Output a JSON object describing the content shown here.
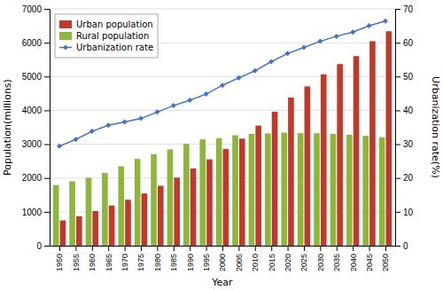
{
  "chart_data": {
    "type": "bar",
    "x": [
      1950,
      1955,
      1960,
      1965,
      1970,
      1975,
      1980,
      1985,
      1990,
      1995,
      2000,
      2005,
      2010,
      2015,
      2020,
      2025,
      2030,
      2035,
      2040,
      2045,
      2050
    ],
    "series": [
      {
        "name": "Urban population",
        "type": "bar",
        "color": "#c0392b",
        "values": [
          746,
          870,
          1022,
          1188,
          1357,
          1543,
          1770,
          2011,
          2281,
          2553,
          2862,
          3164,
          3549,
          3959,
          4378,
          4708,
          5063,
          5368,
          5604,
          6044,
          6339
        ]
      },
      {
        "name": "Rural population",
        "type": "bar",
        "color": "#8db63c",
        "values": [
          1791,
          1903,
          2008,
          2148,
          2347,
          2566,
          2705,
          2845,
          3011,
          3144,
          3178,
          3264,
          3306,
          3318,
          3342,
          3325,
          3324,
          3306,
          3278,
          3247,
          3208
        ]
      },
      {
        "name": "Urbanization rate",
        "type": "line",
        "axis": "y2",
        "color": "#4472c4",
        "marker": "diamond",
        "values": [
          29.4,
          31.4,
          33.8,
          35.6,
          36.6,
          37.6,
          39.5,
          41.4,
          43.0,
          44.8,
          47.4,
          49.6,
          51.7,
          54.4,
          56.8,
          58.6,
          60.4,
          61.9,
          63.1,
          65.0,
          66.4
        ]
      }
    ],
    "xlabel": "Year",
    "ylabel": "Population(millions)",
    "y2label": "Urbanization rate(%)",
    "xlim": [
      1947,
      2053
    ],
    "xticks": [
      1950,
      1955,
      1960,
      1965,
      1970,
      1975,
      1980,
      1985,
      1990,
      1995,
      2000,
      2005,
      2010,
      2015,
      2020,
      2025,
      2030,
      2035,
      2040,
      2045,
      2050
    ],
    "ylim": [
      0,
      7000
    ],
    "yticks": [
      0,
      1000,
      2000,
      3000,
      4000,
      5000,
      6000,
      7000
    ],
    "y2lim": [
      0,
      70
    ],
    "y2ticks": [
      0,
      10,
      20,
      30,
      40,
      50,
      60,
      70
    ],
    "grid": true,
    "legend": "upper left"
  }
}
